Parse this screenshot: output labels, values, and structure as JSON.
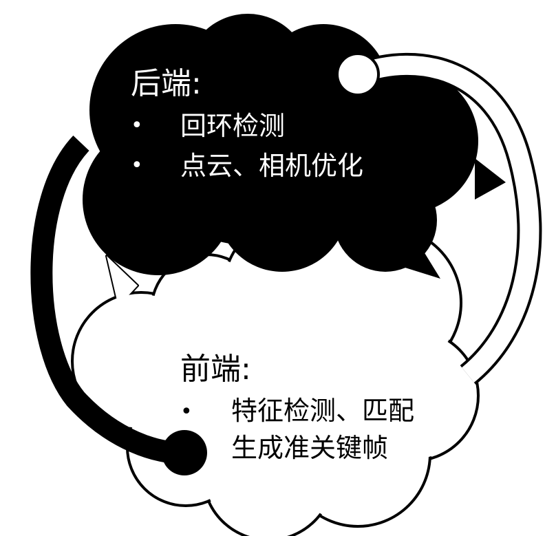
{
  "backend": {
    "title": "后端:",
    "bullet": "•",
    "items": [
      "回环检测",
      "点云、相机优化"
    ]
  },
  "frontend": {
    "title": "前端:",
    "bullet": "•",
    "item_line1": "特征检测、匹配",
    "item_line2": "生成准关键帧"
  },
  "colors": {
    "backend_cloud": "#000000",
    "frontend_cloud": "#ffffff",
    "outline": "#000000"
  }
}
